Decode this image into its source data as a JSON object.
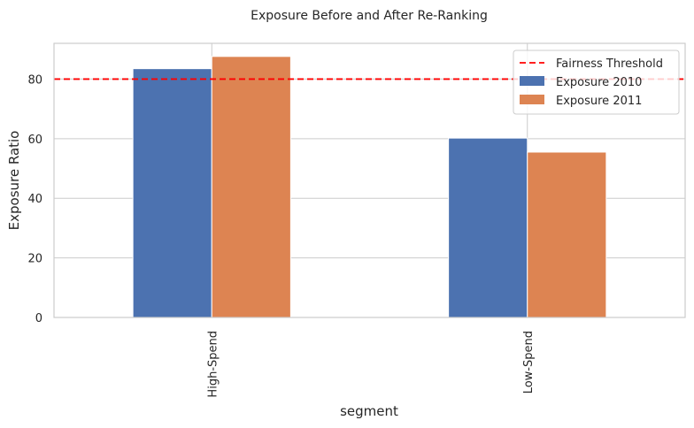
{
  "chart_data": {
    "type": "bar",
    "title": "Exposure Before and After Re-Ranking",
    "xlabel": "segment",
    "ylabel": "Exposure Ratio",
    "categories": [
      "High-Spend",
      "Low-Spend"
    ],
    "series": [
      {
        "name": "Exposure 2010",
        "values": [
          83.5,
          60.2
        ],
        "color": "#4c72b0"
      },
      {
        "name": "Exposure 2011",
        "values": [
          87.6,
          55.5
        ],
        "color": "#dd8452"
      }
    ],
    "threshold": {
      "name": "Fairness Threshold",
      "value": 80,
      "color": "#ff0000",
      "style": "dashed"
    },
    "ylim": [
      0,
      92
    ],
    "yticks": [
      0,
      20,
      40,
      60,
      80
    ],
    "grid": true,
    "legend_position": "top-right"
  }
}
